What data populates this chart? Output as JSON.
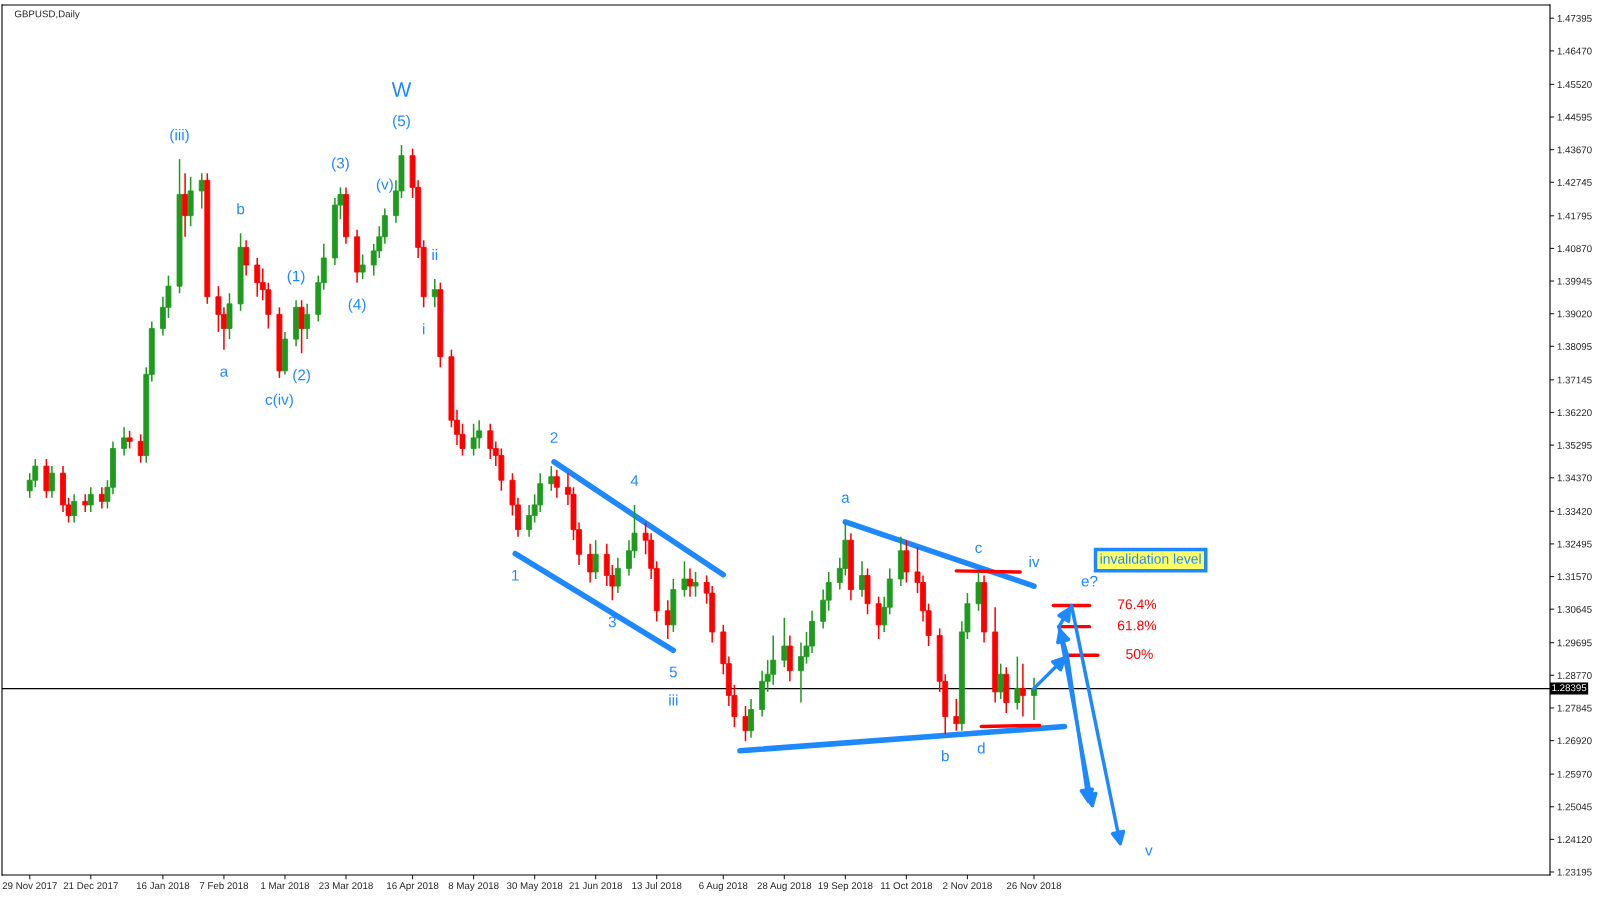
{
  "chart_data": {
    "type": "candlestick",
    "title": "GBPUSD,Daily",
    "x": [
      "2017-11-29",
      "2017-12-01",
      "2017-12-05",
      "2017-12-07",
      "2017-12-11",
      "2017-12-13",
      "2017-12-15",
      "2017-12-19",
      "2017-12-21",
      "2017-12-25",
      "2017-12-27",
      "2017-12-29",
      "2018-01-02",
      "2018-01-04",
      "2018-01-08",
      "2018-01-10",
      "2018-01-12",
      "2018-01-16",
      "2018-01-18",
      "2018-01-22",
      "2018-01-24",
      "2018-01-26",
      "2018-01-30",
      "2018-02-01",
      "2018-02-05",
      "2018-02-07",
      "2018-02-09",
      "2018-02-13",
      "2018-02-15",
      "2018-02-19",
      "2018-02-21",
      "2018-02-23",
      "2018-02-27",
      "2018-03-01",
      "2018-03-05",
      "2018-03-07",
      "2018-03-09",
      "2018-03-13",
      "2018-03-15",
      "2018-03-19",
      "2018-03-21",
      "2018-03-23",
      "2018-03-27",
      "2018-03-29",
      "2018-04-02",
      "2018-04-04",
      "2018-04-06",
      "2018-04-10",
      "2018-04-12",
      "2018-04-16",
      "2018-04-18",
      "2018-04-20",
      "2018-04-24",
      "2018-04-26",
      "2018-04-30",
      "2018-05-02",
      "2018-05-04",
      "2018-05-08",
      "2018-05-10",
      "2018-05-14",
      "2018-05-16",
      "2018-05-18",
      "2018-05-22",
      "2018-05-24",
      "2018-05-28",
      "2018-05-30",
      "2018-06-01",
      "2018-06-05",
      "2018-06-07",
      "2018-06-11",
      "2018-06-13",
      "2018-06-15",
      "2018-06-19",
      "2018-06-21",
      "2018-06-25",
      "2018-06-27",
      "2018-06-29",
      "2018-07-03",
      "2018-07-05",
      "2018-07-09",
      "2018-07-11",
      "2018-07-13",
      "2018-07-17",
      "2018-07-19",
      "2018-07-23",
      "2018-07-25",
      "2018-07-27",
      "2018-07-31",
      "2018-08-02",
      "2018-08-06",
      "2018-08-08",
      "2018-08-10",
      "2018-08-14",
      "2018-08-16",
      "2018-08-20",
      "2018-08-22",
      "2018-08-24",
      "2018-08-28",
      "2018-08-30",
      "2018-09-03",
      "2018-09-05",
      "2018-09-07",
      "2018-09-11",
      "2018-09-13",
      "2018-09-17",
      "2018-09-19",
      "2018-09-21",
      "2018-09-25",
      "2018-09-27",
      "2018-10-01",
      "2018-10-03",
      "2018-10-05",
      "2018-10-09",
      "2018-10-11",
      "2018-10-15",
      "2018-10-17",
      "2018-10-19",
      "2018-10-23",
      "2018-10-25",
      "2018-10-29",
      "2018-10-31",
      "2018-11-02",
      "2018-11-06",
      "2018-11-08",
      "2018-11-12",
      "2018-11-14",
      "2018-11-16",
      "2018-11-20",
      "2018-11-22",
      "2018-11-26"
    ],
    "ohlc": [
      [
        1.34,
        1.345,
        1.338,
        1.343
      ],
      [
        1.343,
        1.349,
        1.341,
        1.347
      ],
      [
        1.347,
        1.349,
        1.338,
        1.34
      ],
      [
        1.34,
        1.347,
        1.338,
        1.345
      ],
      [
        1.345,
        1.347,
        1.334,
        1.336
      ],
      [
        1.336,
        1.338,
        1.331,
        1.333
      ],
      [
        1.333,
        1.339,
        1.331,
        1.337
      ],
      [
        1.337,
        1.339,
        1.334,
        1.336
      ],
      [
        1.336,
        1.341,
        1.334,
        1.339
      ],
      [
        1.339,
        1.341,
        1.335,
        1.337
      ],
      [
        1.337,
        1.343,
        1.335,
        1.341
      ],
      [
        1.341,
        1.354,
        1.339,
        1.352
      ],
      [
        1.352,
        1.358,
        1.35,
        1.355
      ],
      [
        1.355,
        1.357,
        1.352,
        1.354
      ],
      [
        1.354,
        1.356,
        1.348,
        1.35
      ],
      [
        1.35,
        1.375,
        1.348,
        1.373
      ],
      [
        1.373,
        1.388,
        1.371,
        1.386
      ],
      [
        1.386,
        1.395,
        1.384,
        1.392
      ],
      [
        1.392,
        1.401,
        1.389,
        1.398
      ],
      [
        1.398,
        1.434,
        1.396,
        1.424
      ],
      [
        1.424,
        1.43,
        1.412,
        1.418
      ],
      [
        1.418,
        1.429,
        1.415,
        1.425
      ],
      [
        1.425,
        1.43,
        1.42,
        1.428
      ],
      [
        1.428,
        1.43,
        1.393,
        1.395
      ],
      [
        1.395,
        1.398,
        1.385,
        1.39
      ],
      [
        1.39,
        1.392,
        1.38,
        1.386
      ],
      [
        1.386,
        1.396,
        1.383,
        1.393
      ],
      [
        1.393,
        1.413,
        1.391,
        1.409
      ],
      [
        1.409,
        1.411,
        1.401,
        1.404
      ],
      [
        1.404,
        1.406,
        1.395,
        1.399
      ],
      [
        1.399,
        1.403,
        1.394,
        1.397
      ],
      [
        1.397,
        1.399,
        1.386,
        1.39
      ],
      [
        1.39,
        1.392,
        1.372,
        1.374
      ],
      [
        1.374,
        1.385,
        1.373,
        1.383
      ],
      [
        1.383,
        1.394,
        1.381,
        1.392
      ],
      [
        1.392,
        1.394,
        1.379,
        1.386
      ],
      [
        1.386,
        1.393,
        1.383,
        1.39
      ],
      [
        1.39,
        1.401,
        1.388,
        1.399
      ],
      [
        1.399,
        1.41,
        1.397,
        1.406
      ],
      [
        1.406,
        1.423,
        1.404,
        1.421
      ],
      [
        1.421,
        1.426,
        1.417,
        1.424
      ],
      [
        1.424,
        1.426,
        1.41,
        1.412
      ],
      [
        1.412,
        1.414,
        1.399,
        1.402
      ],
      [
        1.402,
        1.407,
        1.4,
        1.404
      ],
      [
        1.404,
        1.41,
        1.401,
        1.408
      ],
      [
        1.408,
        1.415,
        1.406,
        1.412
      ],
      [
        1.412,
        1.42,
        1.41,
        1.418
      ],
      [
        1.418,
        1.428,
        1.416,
        1.425
      ],
      [
        1.425,
        1.438,
        1.423,
        1.435
      ],
      [
        1.435,
        1.437,
        1.423,
        1.426
      ],
      [
        1.426,
        1.428,
        1.406,
        1.409
      ],
      [
        1.409,
        1.411,
        1.392,
        1.395
      ],
      [
        1.395,
        1.4,
        1.392,
        1.397
      ],
      [
        1.397,
        1.399,
        1.375,
        1.378
      ],
      [
        1.378,
        1.38,
        1.358,
        1.36
      ],
      [
        1.36,
        1.363,
        1.353,
        1.356
      ],
      [
        1.356,
        1.359,
        1.35,
        1.352
      ],
      [
        1.352,
        1.359,
        1.35,
        1.355
      ],
      [
        1.355,
        1.36,
        1.352,
        1.357
      ],
      [
        1.357,
        1.359,
        1.349,
        1.352
      ],
      [
        1.352,
        1.354,
        1.347,
        1.35
      ],
      [
        1.35,
        1.352,
        1.34,
        1.343
      ],
      [
        1.343,
        1.345,
        1.333,
        1.336
      ],
      [
        1.336,
        1.338,
        1.327,
        1.329
      ],
      [
        1.329,
        1.336,
        1.327,
        1.333
      ],
      [
        1.333,
        1.339,
        1.331,
        1.336
      ],
      [
        1.336,
        1.345,
        1.334,
        1.342
      ],
      [
        1.342,
        1.347,
        1.34,
        1.344
      ],
      [
        1.344,
        1.346,
        1.338,
        1.341
      ],
      [
        1.341,
        1.345,
        1.336,
        1.339
      ],
      [
        1.339,
        1.341,
        1.326,
        1.329
      ],
      [
        1.329,
        1.331,
        1.319,
        1.322
      ],
      [
        1.322,
        1.325,
        1.314,
        1.317
      ],
      [
        1.317,
        1.326,
        1.315,
        1.322
      ],
      [
        1.322,
        1.325,
        1.313,
        1.316
      ],
      [
        1.316,
        1.319,
        1.309,
        1.313
      ],
      [
        1.313,
        1.321,
        1.311,
        1.318
      ],
      [
        1.318,
        1.326,
        1.316,
        1.323
      ],
      [
        1.323,
        1.336,
        1.321,
        1.328
      ],
      [
        1.328,
        1.331,
        1.322,
        1.326
      ],
      [
        1.326,
        1.328,
        1.315,
        1.318
      ],
      [
        1.318,
        1.32,
        1.303,
        1.306
      ],
      [
        1.306,
        1.309,
        1.298,
        1.302
      ],
      [
        1.302,
        1.315,
        1.3,
        1.312
      ],
      [
        1.312,
        1.32,
        1.31,
        1.315
      ],
      [
        1.315,
        1.318,
        1.31,
        1.313
      ],
      [
        1.313,
        1.317,
        1.31,
        1.314
      ],
      [
        1.314,
        1.316,
        1.308,
        1.311
      ],
      [
        1.311,
        1.313,
        1.297,
        1.3
      ],
      [
        1.3,
        1.302,
        1.288,
        1.291
      ],
      [
        1.291,
        1.293,
        1.279,
        1.282
      ],
      [
        1.282,
        1.285,
        1.273,
        1.276
      ],
      [
        1.276,
        1.279,
        1.269,
        1.272
      ],
      [
        1.272,
        1.281,
        1.27,
        1.278
      ],
      [
        1.278,
        1.289,
        1.276,
        1.286
      ],
      [
        1.286,
        1.292,
        1.283,
        1.288
      ],
      [
        1.288,
        1.299,
        1.285,
        1.292
      ],
      [
        1.292,
        1.304,
        1.29,
        1.296
      ],
      [
        1.296,
        1.299,
        1.286,
        1.289
      ],
      [
        1.289,
        1.297,
        1.28,
        1.293
      ],
      [
        1.293,
        1.3,
        1.291,
        1.296
      ],
      [
        1.296,
        1.306,
        1.294,
        1.303
      ],
      [
        1.303,
        1.312,
        1.301,
        1.309
      ],
      [
        1.309,
        1.317,
        1.306,
        1.314
      ],
      [
        1.314,
        1.321,
        1.312,
        1.318
      ],
      [
        1.318,
        1.331,
        1.316,
        1.326
      ],
      [
        1.326,
        1.328,
        1.309,
        1.312
      ],
      [
        1.312,
        1.32,
        1.31,
        1.316
      ],
      [
        1.316,
        1.318,
        1.305,
        1.308
      ],
      [
        1.308,
        1.31,
        1.298,
        1.302
      ],
      [
        1.302,
        1.31,
        1.3,
        1.307
      ],
      [
        1.307,
        1.318,
        1.305,
        1.315
      ],
      [
        1.315,
        1.327,
        1.313,
        1.323
      ],
      [
        1.323,
        1.326,
        1.314,
        1.317
      ],
      [
        1.317,
        1.324,
        1.311,
        1.314
      ],
      [
        1.314,
        1.316,
        1.303,
        1.306
      ],
      [
        1.306,
        1.308,
        1.296,
        1.299
      ],
      [
        1.299,
        1.301,
        1.283,
        1.286
      ],
      [
        1.286,
        1.288,
        1.271,
        1.276
      ],
      [
        1.276,
        1.281,
        1.272,
        1.274
      ],
      [
        1.274,
        1.303,
        1.272,
        1.3
      ],
      [
        1.3,
        1.311,
        1.298,
        1.308
      ],
      [
        1.308,
        1.317,
        1.306,
        1.314
      ],
      [
        1.314,
        1.316,
        1.297,
        1.3
      ],
      [
        1.3,
        1.307,
        1.28,
        1.283
      ],
      [
        1.283,
        1.291,
        1.281,
        1.288
      ],
      [
        1.288,
        1.29,
        1.277,
        1.28
      ],
      [
        1.28,
        1.293,
        1.278,
        1.284
      ],
      [
        1.284,
        1.291,
        1.276,
        1.282
      ],
      [
        1.282,
        1.287,
        1.275,
        1.284
      ]
    ],
    "colors": [
      "#1f9a1f",
      "#1f9a1f",
      "#ff0000",
      "#1f9a1f",
      "#ff0000",
      "#ff0000",
      "#1f9a1f",
      "#ff0000",
      "#1f9a1f",
      "#ff0000",
      "#1f9a1f",
      "#1f9a1f",
      "#1f9a1f",
      "#ff0000",
      "#ff0000",
      "#1f9a1f",
      "#1f9a1f",
      "#1f9a1f",
      "#1f9a1f",
      "#1f9a1f",
      "#ff0000",
      "#1f9a1f",
      "#1f9a1f",
      "#ff0000",
      "#ff0000",
      "#ff0000",
      "#1f9a1f",
      "#1f9a1f",
      "#ff0000",
      "#ff0000",
      "#ff0000",
      "#ff0000",
      "#ff0000",
      "#1f9a1f",
      "#1f9a1f",
      "#ff0000",
      "#1f9a1f",
      "#1f9a1f",
      "#1f9a1f",
      "#1f9a1f",
      "#1f9a1f",
      "#ff0000",
      "#ff0000",
      "#1f9a1f",
      "#1f9a1f",
      "#1f9a1f",
      "#1f9a1f",
      "#1f9a1f",
      "#1f9a1f",
      "#ff0000",
      "#ff0000",
      "#ff0000",
      "#1f9a1f",
      "#ff0000",
      "#ff0000",
      "#ff0000",
      "#ff0000",
      "#1f9a1f",
      "#1f9a1f",
      "#ff0000",
      "#ff0000",
      "#ff0000",
      "#ff0000",
      "#ff0000",
      "#1f9a1f",
      "#1f9a1f",
      "#1f9a1f",
      "#1f9a1f",
      "#ff0000",
      "#ff0000",
      "#ff0000",
      "#ff0000",
      "#ff0000",
      "#1f9a1f",
      "#ff0000",
      "#ff0000",
      "#1f9a1f",
      "#1f9a1f",
      "#1f9a1f",
      "#ff0000",
      "#ff0000",
      "#ff0000",
      "#ff0000",
      "#1f9a1f",
      "#1f9a1f",
      "#ff0000",
      "#1f9a1f",
      "#ff0000",
      "#ff0000",
      "#ff0000",
      "#ff0000",
      "#ff0000",
      "#ff0000",
      "#1f9a1f",
      "#1f9a1f",
      "#1f9a1f",
      "#1f9a1f",
      "#1f9a1f",
      "#ff0000",
      "#1f9a1f",
      "#1f9a1f",
      "#1f9a1f",
      "#1f9a1f",
      "#1f9a1f",
      "#1f9a1f",
      "#1f9a1f",
      "#ff0000",
      "#1f9a1f",
      "#ff0000",
      "#ff0000",
      "#1f9a1f",
      "#1f9a1f",
      "#1f9a1f",
      "#ff0000",
      "#ff0000",
      "#ff0000",
      "#ff0000",
      "#ff0000",
      "#ff0000",
      "#ff0000",
      "#1f9a1f",
      "#1f9a1f",
      "#1f9a1f",
      "#ff0000",
      "#ff0000",
      "#1f9a1f",
      "#ff0000",
      "#1f9a1f",
      "#ff0000",
      "#1f9a1f"
    ],
    "series": [
      {
        "type": "line",
        "color": "#1e88ff",
        "x": [
          "2018-06-06",
          "2018-08-06"
        ],
        "values": [
          1.3482,
          1.3162
        ]
      },
      {
        "type": "line",
        "color": "#1e88ff",
        "x": [
          "2018-05-23",
          "2018-07-19"
        ],
        "values": [
          1.3222,
          1.2948
        ]
      },
      {
        "type": "line",
        "color": "#1e88ff",
        "x": [
          "2018-09-19",
          "2018-11-26"
        ],
        "values": [
          1.3312,
          1.313
        ]
      },
      {
        "type": "line",
        "color": "#1e88ff",
        "x": [
          "2018-08-12",
          "2018-12-07"
        ],
        "values": [
          1.2663,
          1.2732
        ]
      },
      {
        "type": "line",
        "color": "#ff0000",
        "x": [
          "2018-10-29",
          "2018-11-21"
        ],
        "values": [
          1.3173,
          1.317
        ]
      },
      {
        "type": "line",
        "color": "#ff0000",
        "x": [
          "2018-11-07",
          "2018-11-28"
        ],
        "values": [
          1.2732,
          1.2735
        ]
      },
      {
        "type": "line",
        "color": "#ff0000",
        "name": "76.4%",
        "x": [
          "2018-12-03",
          "2018-12-16"
        ],
        "values": [
          1.3075,
          1.3075
        ]
      },
      {
        "type": "line",
        "color": "#ff0000",
        "name": "61.8%",
        "x": [
          "2018-12-05",
          "2018-12-16"
        ],
        "values": [
          1.3015,
          1.3015
        ]
      },
      {
        "type": "line",
        "color": "#ff0000",
        "name": "50%",
        "x": [
          "2018-12-08",
          "2018-12-19"
        ],
        "values": [
          1.2934,
          1.2934
        ]
      }
    ],
    "ref_lines": [
      {
        "axis": "y",
        "value": 1.28395,
        "label": "1.28395",
        "color": "#000000"
      }
    ],
    "annotations": [
      {
        "text": "(iii)",
        "x": "2018-01-22",
        "y": 1.434
      },
      {
        "text": "a",
        "x": "2018-02-07",
        "y": 1.38
      },
      {
        "text": "b",
        "x": "2018-02-13",
        "y": 1.413
      },
      {
        "text": "c(iv)",
        "x": "2018-02-27",
        "y": 1.372
      },
      {
        "text": "(1)",
        "x": "2018-03-05",
        "y": 1.394
      },
      {
        "text": "(2)",
        "x": "2018-03-07",
        "y": 1.379
      },
      {
        "text": "(3)",
        "x": "2018-03-21",
        "y": 1.426
      },
      {
        "text": "(4)",
        "x": "2018-03-27",
        "y": 1.399
      },
      {
        "text": "(v)",
        "x": "2018-04-06",
        "y": 1.42
      },
      {
        "text": "(5)",
        "x": "2018-04-12",
        "y": 1.438
      },
      {
        "text": "W",
        "x": "2018-04-12",
        "y": 1.438
      },
      {
        "text": "i",
        "x": "2018-04-20",
        "y": 1.392
      },
      {
        "text": "ii",
        "x": "2018-04-24",
        "y": 1.4
      },
      {
        "text": "1",
        "x": "2018-05-23",
        "y": 1.3222
      },
      {
        "text": "2",
        "x": "2018-06-06",
        "y": 1.3482
      },
      {
        "text": "3",
        "x": "2018-06-27",
        "y": 1.309
      },
      {
        "text": "4",
        "x": "2018-07-05",
        "y": 1.336
      },
      {
        "text": "5",
        "x": "2018-07-19",
        "y": 1.2948
      },
      {
        "text": "iii",
        "x": "2018-07-19",
        "y": 1.2948
      },
      {
        "text": "a",
        "x": "2018-09-19",
        "y": 1.3312
      },
      {
        "text": "c",
        "x": "2018-11-06",
        "y": 1.317
      },
      {
        "text": "b",
        "x": "2018-10-25",
        "y": 1.271
      },
      {
        "text": "d",
        "x": "2018-11-07",
        "y": 1.2732
      },
      {
        "text": "iv",
        "x": "2018-11-26",
        "y": 1.313
      },
      {
        "text": "e?",
        "x": "2018-12-16",
        "y": 1.3075
      },
      "v",
      "invalidation level"
    ],
    "xlim": [
      "2017-11-19",
      "2019-05-31"
    ],
    "xticks": [
      {
        "value": "2017-11-29",
        "label": "29 Nov 2017"
      },
      {
        "value": "2017-12-21",
        "label": "21 Dec 2017"
      },
      {
        "value": "2018-01-16",
        "label": "16 Jan 2018"
      },
      {
        "value": "2018-02-07",
        "label": "7 Feb 2018"
      },
      {
        "value": "2018-03-01",
        "label": "1 Mar 2018"
      },
      {
        "value": "2018-03-23",
        "label": "23 Mar 2018"
      },
      {
        "value": "2018-04-16",
        "label": "16 Apr 2018"
      },
      {
        "value": "2018-05-08",
        "label": "8 May 2018"
      },
      {
        "value": "2018-05-30",
        "label": "30 May 2018"
      },
      {
        "value": "2018-06-21",
        "label": "21 Jun 2018"
      },
      {
        "value": "2018-07-13",
        "label": "13 Jul 2018"
      },
      {
        "value": "2018-08-06",
        "label": "6 Aug 2018"
      },
      {
        "value": "2018-08-28",
        "label": "28 Aug 2018"
      },
      {
        "value": "2018-09-19",
        "label": "19 Sep 2018"
      },
      {
        "value": "2018-10-11",
        "label": "11 Oct 2018"
      },
      {
        "value": "2018-11-02",
        "label": "2 Nov 2018"
      },
      {
        "value": "2018-11-26",
        "label": "26 Nov 2018"
      }
    ],
    "ylim": [
      1.2311,
      1.4777
    ],
    "yticks": [
      {
        "value": 1.23195,
        "label": "1.23195"
      },
      {
        "value": 1.2412,
        "label": "1.24120"
      },
      {
        "value": 1.25045,
        "label": "1.25045"
      },
      {
        "value": 1.2597,
        "label": "1.25970"
      },
      {
        "value": 1.2692,
        "label": "1.26920"
      },
      {
        "value": 1.27845,
        "label": "1.27845"
      },
      {
        "value": 1.2877,
        "label": "1.28770"
      },
      {
        "value": 1.29695,
        "label": "1.29695"
      },
      {
        "value": 1.30645,
        "label": "1.30645"
      },
      {
        "value": 1.3157,
        "label": "1.31570"
      },
      {
        "value": 1.32495,
        "label": "1.32495"
      },
      {
        "value": 1.3342,
        "label": "1.33420"
      },
      {
        "value": 1.3437,
        "label": "1.34370"
      },
      {
        "value": 1.35295,
        "label": "1.35295"
      },
      {
        "value": 1.3622,
        "label": "1.36220"
      },
      {
        "value": 1.37145,
        "label": "1.37145"
      },
      {
        "value": 1.38095,
        "label": "1.38095"
      },
      {
        "value": 1.3902,
        "label": "1.39020"
      },
      {
        "value": 1.39945,
        "label": "1.39945"
      },
      {
        "value": 1.4087,
        "label": "1.40870"
      },
      {
        "value": 1.41795,
        "label": "1.41795"
      },
      {
        "value": 1.42745,
        "label": "1.42745"
      },
      {
        "value": 1.4367,
        "label": "1.43670"
      },
      {
        "value": 1.44595,
        "label": "1.44595"
      },
      {
        "value": 1.4552,
        "label": "1.45520"
      },
      {
        "value": 1.4647,
        "label": "1.46470"
      },
      {
        "value": 1.47395,
        "label": "1.47395"
      }
    ],
    "grid": false,
    "legend": false
  }
}
